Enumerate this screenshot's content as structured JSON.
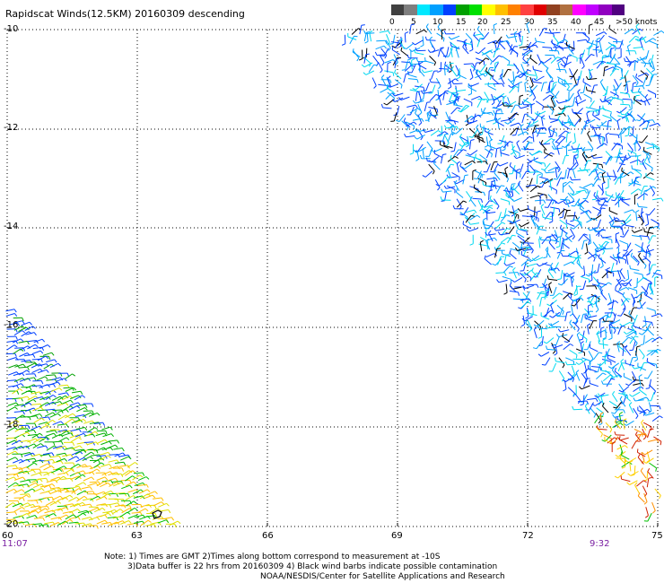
{
  "title": "Rapidscat Winds(12.5KM) 20160309 descending",
  "colorbar": {
    "colors": [
      "#404040",
      "#7f7f7f",
      "#00e8ff",
      "#00a0ff",
      "#0040ff",
      "#00a000",
      "#00e000",
      "#ffff00",
      "#ffc000",
      "#ff8000",
      "#ff4040",
      "#e00000",
      "#904020",
      "#b07040",
      "#ff00ff",
      "#c000ff",
      "#9000c0",
      "#500080"
    ],
    "labels": [
      "0",
      "5",
      "10",
      "15",
      "20",
      "25",
      "30",
      "35",
      "40",
      "45",
      ">50 knots"
    ]
  },
  "map": {
    "lon_range": [
      60,
      75
    ],
    "lat_range": [
      -20,
      -10
    ],
    "x_ticks": [
      "60",
      "63",
      "66",
      "69",
      "72",
      "75"
    ],
    "y_ticks": [
      "-10",
      "-12",
      "-14",
      "-16",
      "-18",
      "-20"
    ],
    "grid": true
  },
  "times": {
    "left": "11:07",
    "right": "9:32"
  },
  "notes": {
    "line1": "Note: 1) Times are GMT 2)Times along bottom correspond to measurement at -10S",
    "line2": "3)Data buffer is 22 hrs from 20160309 4) Black wind barbs indicate possible contamination",
    "line3": "NOAA/NESDIS/Center for Satellite Applications and Research"
  }
}
